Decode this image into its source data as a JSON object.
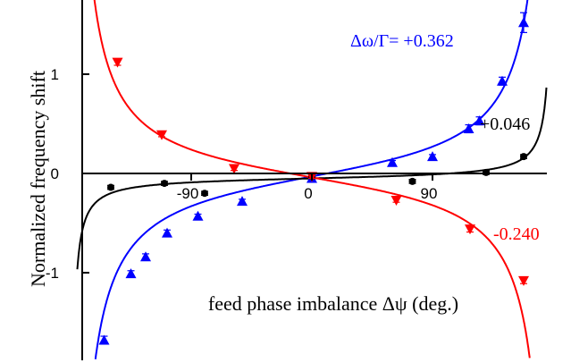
{
  "chart_data": {
    "type": "scatter",
    "title": "",
    "xlabel": "feed phase imbalance Δψ (deg.)",
    "ylabel": "Normalized frequency shift",
    "xlim": [
      -180,
      180
    ],
    "ylim": [
      -1.85,
      1.75
    ],
    "x_ticks": [
      -90,
      0,
      90
    ],
    "x_tick_labels": [
      "-90",
      "0",
      "90"
    ],
    "y_ticks": [
      -1,
      0,
      1
    ],
    "y_tick_labels": [
      "-1",
      "0",
      "1"
    ],
    "grid": false,
    "legend": "none",
    "series": [
      {
        "label": "Δω/Γ= +0.362",
        "color": "#0000ff",
        "marker": "triangle-up",
        "x": [
          -155,
          -135,
          -124,
          -108,
          -85,
          -52,
          0,
          60,
          90,
          117,
          125,
          142,
          158
        ],
        "y": [
          -1.68,
          -1.01,
          -0.84,
          -0.6,
          -0.43,
          -0.28,
          -0.05,
          0.11,
          0.17,
          0.45,
          0.53,
          0.93,
          1.52
        ],
        "err": [
          0.04,
          0.03,
          0.03,
          0.03,
          0.02,
          0.02,
          0.02,
          0.02,
          0.02,
          0.04,
          0.04,
          0.04,
          0.1
        ]
      },
      {
        "label": "+0.046",
        "color": "#000000",
        "marker": "circle",
        "x": [
          -150,
          -110,
          -80,
          0,
          75,
          130,
          158
        ],
        "y": [
          -0.14,
          -0.1,
          -0.2,
          -0.03,
          -0.08,
          0.01,
          0.17
        ],
        "err": [
          0.02,
          0.02,
          0.02,
          0.02,
          0.02,
          0.02,
          0.02
        ]
      },
      {
        "label": "-0.240",
        "color": "#ff0000",
        "marker": "triangle-down",
        "x": [
          -145,
          -112,
          -58,
          0,
          63,
          118,
          158
        ],
        "y": [
          1.12,
          0.39,
          0.05,
          -0.03,
          -0.27,
          -0.56,
          -1.08
        ],
        "err": [
          0.03,
          0.02,
          0.02,
          0.02,
          0.02,
          0.03,
          0.03
        ]
      }
    ]
  }
}
